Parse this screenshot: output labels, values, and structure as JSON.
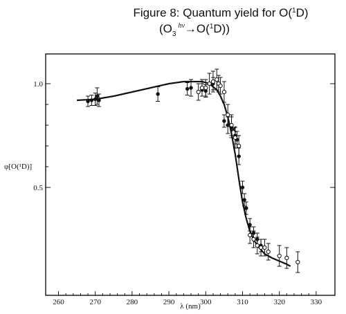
{
  "title": {
    "line1": "Figure 8: Quantum yield for O(",
    "line1_sup": "1",
    "line1_end": "D)",
    "line2_open": "(O",
    "line2_sub": "3",
    "line2_hv": "hν",
    "line2_arrow": "→O(",
    "line2_sup": "1",
    "line2_end": "D))"
  },
  "chart_data": {
    "type": "scatter",
    "xlabel": "λ (nm)",
    "ylabel": "φ[O(¹D)]",
    "xlim": [
      260,
      330
    ],
    "ylim": [
      0.12,
      1.11
    ],
    "xticks": [
      260,
      270,
      280,
      290,
      300,
      310,
      320,
      330
    ],
    "yticks": [
      0.5,
      1.0
    ],
    "ytick_labels": [
      "0.5",
      "1.0"
    ],
    "grid": false,
    "legend": "none",
    "fit_curve": {
      "x": [
        265,
        270,
        275,
        280,
        285,
        290,
        294,
        297,
        299,
        301,
        303,
        304,
        305,
        306,
        307,
        308,
        309,
        310,
        311,
        312,
        313,
        314,
        315,
        316,
        318,
        320,
        322,
        323
      ],
      "y": [
        0.92,
        0.925,
        0.94,
        0.96,
        0.98,
        1.0,
        1.01,
        1.01,
        1.01,
        1.0,
        0.97,
        0.94,
        0.9,
        0.84,
        0.76,
        0.66,
        0.54,
        0.43,
        0.35,
        0.29,
        0.25,
        0.22,
        0.2,
        0.18,
        0.16,
        0.145,
        0.13,
        0.12
      ]
    },
    "series": [
      {
        "marker": "filled-circle",
        "x": [
          268,
          269,
          270,
          270.5,
          271,
          287,
          295,
          296,
          299,
          300,
          302,
          305,
          306,
          307,
          308,
          308.5,
          309,
          310,
          310.5,
          311,
          312,
          313,
          314,
          315
        ],
        "y": [
          0.915,
          0.92,
          0.925,
          0.94,
          0.92,
          0.95,
          0.975,
          0.98,
          0.97,
          0.965,
          1.0,
          0.82,
          0.8,
          0.79,
          0.75,
          0.73,
          0.65,
          0.5,
          0.44,
          0.4,
          0.32,
          0.28,
          0.25,
          0.22
        ],
        "err": [
          0.025,
          0.025,
          0.03,
          0.04,
          0.03,
          0.035,
          0.03,
          0.04,
          0.03,
          0.03,
          0.03,
          0.03,
          0.04,
          0.05,
          0.04,
          0.04,
          0.04,
          0.03,
          0.03,
          0.03,
          0.03,
          0.03,
          0.03,
          0.03
        ]
      },
      {
        "marker": "open-circle",
        "x": [
          298,
          299,
          300,
          301,
          302,
          303,
          303.5,
          304,
          305,
          306,
          307,
          308,
          309,
          312,
          313,
          314,
          315,
          316,
          317,
          320,
          322,
          325
        ],
        "y": [
          0.96,
          0.98,
          0.98,
          1.0,
          1.01,
          1.02,
          1.0,
          0.99,
          0.96,
          0.85,
          0.8,
          0.74,
          0.7,
          0.27,
          0.25,
          0.22,
          0.21,
          0.21,
          0.19,
          0.17,
          0.16,
          0.14
        ],
        "err": [
          0.04,
          0.04,
          0.04,
          0.05,
          0.05,
          0.05,
          0.04,
          0.04,
          0.05,
          0.05,
          0.05,
          0.05,
          0.05,
          0.04,
          0.04,
          0.04,
          0.04,
          0.04,
          0.04,
          0.05,
          0.05,
          0.05
        ]
      },
      {
        "marker": "x",
        "x": [
          307.5
        ],
        "y": [
          0.78
        ],
        "err": [
          0
        ]
      }
    ]
  }
}
